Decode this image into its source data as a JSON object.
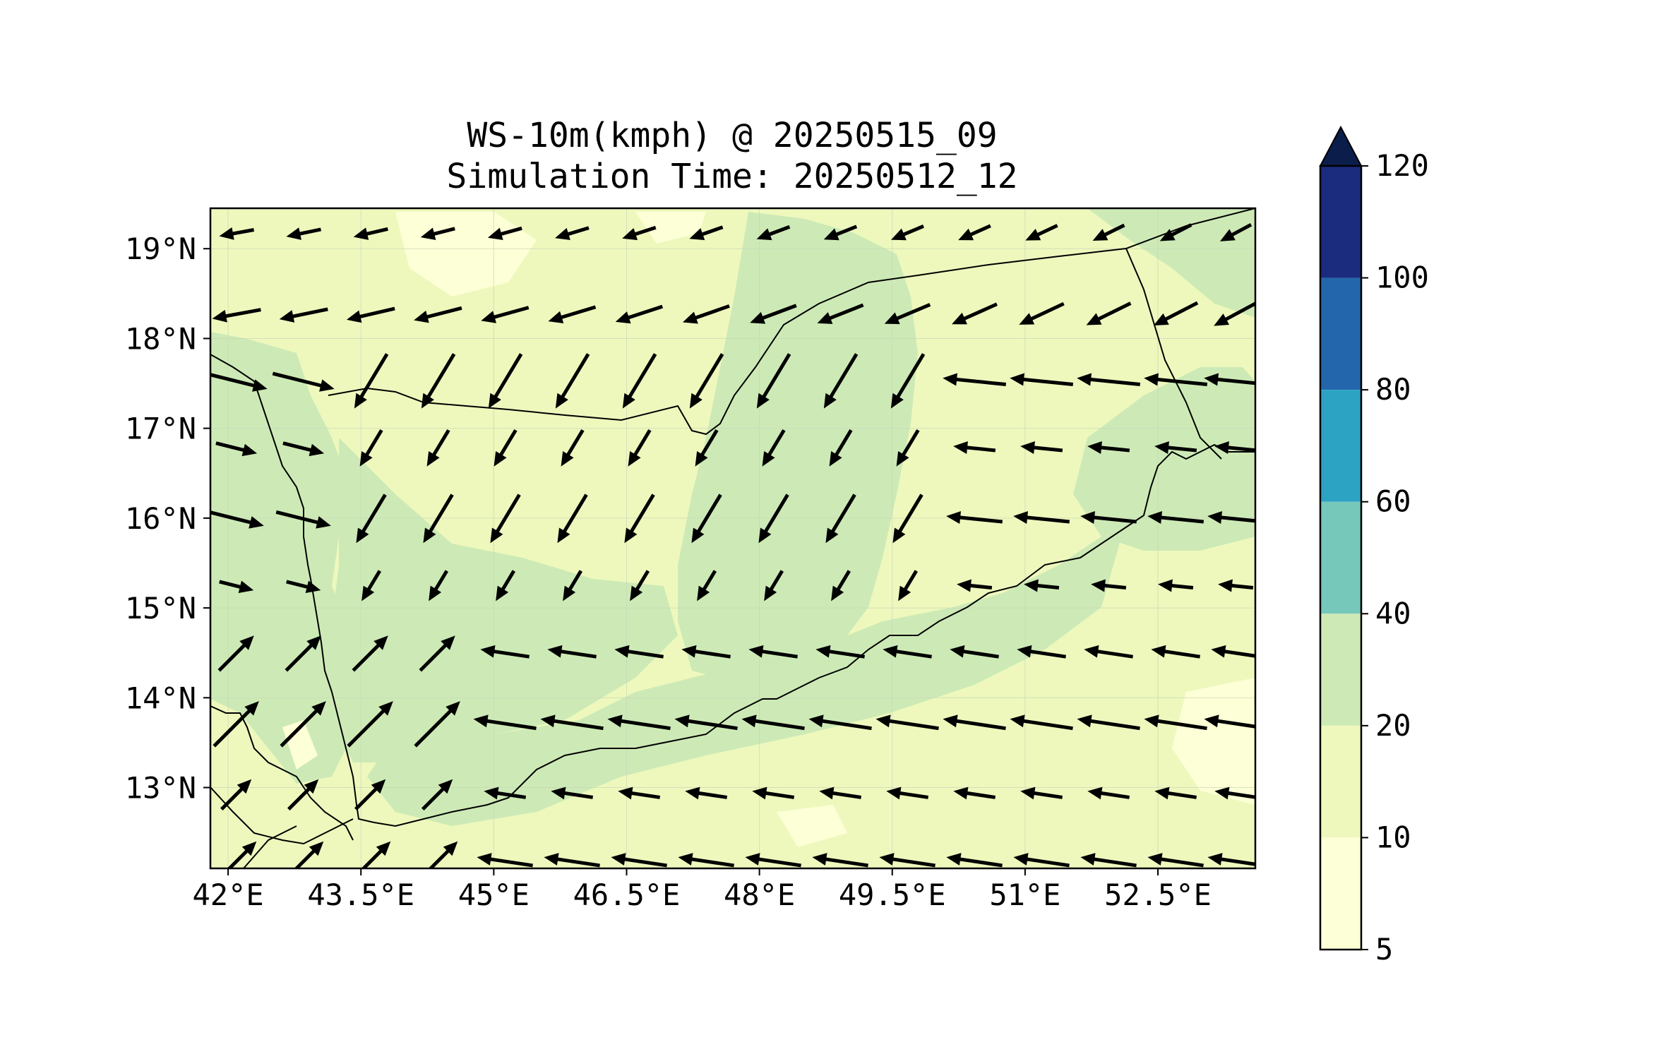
{
  "title": {
    "line1": "WS-10m(kmph) @ 20250515_09",
    "line2": "Simulation Time: 20250512_12"
  },
  "map": {
    "lon_range": [
      41.8,
      53.6
    ],
    "lat_range": [
      12.1,
      19.45
    ],
    "x_ticks": [
      "42°E",
      "43.5°E",
      "45°E",
      "46.5°E",
      "48°E",
      "49.5°E",
      "51°E",
      "52.5°E"
    ],
    "x_tick_values": [
      42,
      43.5,
      45,
      46.5,
      48,
      49.5,
      51,
      52.5
    ],
    "y_ticks": [
      "19°N",
      "18°N",
      "17°N",
      "16°N",
      "15°N",
      "14°N",
      "13°N"
    ],
    "y_tick_values": [
      19,
      18,
      17,
      16,
      15,
      14,
      13
    ],
    "gridlines": true
  },
  "colorbar": {
    "levels": [
      "120",
      "100",
      "80",
      "60",
      "40",
      "20",
      "10",
      "5"
    ],
    "level_values": [
      120,
      100,
      80,
      60,
      40,
      20,
      10,
      5
    ],
    "colors": [
      "#1b2b7e",
      "#2466ab",
      "#2ca3c3",
      "#76c8bb",
      "#cdeab6",
      "#eef8bd",
      "#fdffd6"
    ],
    "extend_color": "#0b1d4a",
    "extend": "max"
  },
  "colors": {
    "background": "#eef8bd",
    "band_20_40": "#cdeab6",
    "band_5_10": "#fdffd6",
    "coast": "#000000",
    "arrow": "#000000"
  }
}
